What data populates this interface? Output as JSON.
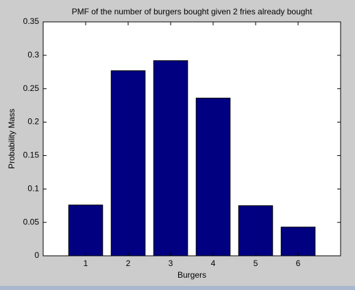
{
  "chart_data": {
    "type": "bar",
    "title": "PMF of the number of burgers bought given 2 fries already bought",
    "x_label": "Burgers",
    "y_label": "Probability Mass",
    "x": [
      1,
      2,
      3,
      4,
      5,
      6
    ],
    "values": [
      0.076,
      0.277,
      0.292,
      0.236,
      0.075,
      0.043
    ],
    "color": "#000080",
    "xlim": [
      0,
      7
    ],
    "xticks": [
      1,
      2,
      3,
      4,
      5,
      6
    ],
    "ylim": [
      0,
      0.35
    ],
    "yticks": [
      0,
      0.05,
      0.1,
      0.15,
      0.2,
      0.25,
      0.3,
      0.35
    ],
    "grid": false
  }
}
